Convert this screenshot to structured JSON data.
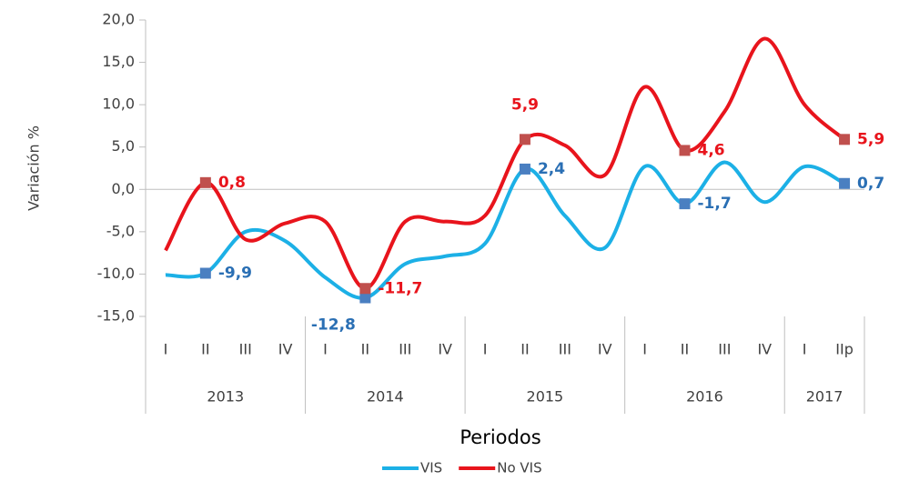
{
  "chart_data": {
    "type": "line",
    "y_axis_label": "Variación %",
    "x_axis_label": "Periodos",
    "groups": [
      {
        "name": "2013",
        "categories": [
          "I",
          "II",
          "III",
          "IV"
        ]
      },
      {
        "name": "2014",
        "categories": [
          "I",
          "II",
          "III",
          "IV"
        ]
      },
      {
        "name": "2015",
        "categories": [
          "I",
          "II",
          "III",
          "IV"
        ]
      },
      {
        "name": "2016",
        "categories": [
          "I",
          "II",
          "III",
          "IV"
        ]
      },
      {
        "name": "2017",
        "categories": [
          "I",
          "IIp"
        ]
      }
    ],
    "series": [
      {
        "name": "VIS",
        "color": "#1cb0e6",
        "marker_color": "#4a7fc1",
        "label_color": "#2a6fb4",
        "values": [
          -10.1,
          -9.9,
          -5.0,
          -6.1,
          -10.4,
          -12.8,
          -8.8,
          -7.9,
          -6.4,
          2.4,
          -3.1,
          -6.9,
          2.7,
          -1.7,
          3.2,
          -1.5,
          2.7,
          0.7
        ],
        "value_labels": [
          null,
          "-9,9",
          null,
          null,
          null,
          "-12,8",
          null,
          null,
          null,
          "2,4",
          null,
          null,
          null,
          "-1,7",
          null,
          null,
          null,
          "0,7"
        ]
      },
      {
        "name": "No VIS",
        "color": "#e8141c",
        "marker_color": "#c0504d",
        "label_color": "#e8141c",
        "values": [
          -7.2,
          0.8,
          -5.9,
          -4.0,
          -3.8,
          -11.7,
          -3.8,
          -3.8,
          -3.1,
          5.9,
          5.2,
          1.7,
          12.1,
          4.6,
          9.2,
          17.8,
          10.0,
          5.9
        ],
        "value_labels": [
          null,
          "0,8",
          null,
          null,
          null,
          "-11,7",
          null,
          null,
          null,
          "5,9",
          null,
          null,
          null,
          "4,6",
          null,
          null,
          null,
          "5,9"
        ]
      }
    ],
    "ylim": [
      -15,
      20
    ],
    "yticks": [
      {
        "value": -15,
        "label": "-15,0"
      },
      {
        "value": -10,
        "label": "-10,0"
      },
      {
        "value": -5,
        "label": "-5,0"
      },
      {
        "value": 0,
        "label": "0,0"
      },
      {
        "value": 5,
        "label": "5,0"
      },
      {
        "value": 10,
        "label": "10,0"
      },
      {
        "value": 15,
        "label": "15,0"
      },
      {
        "value": 20,
        "label": "20,0"
      }
    ],
    "legend": "bottom"
  }
}
